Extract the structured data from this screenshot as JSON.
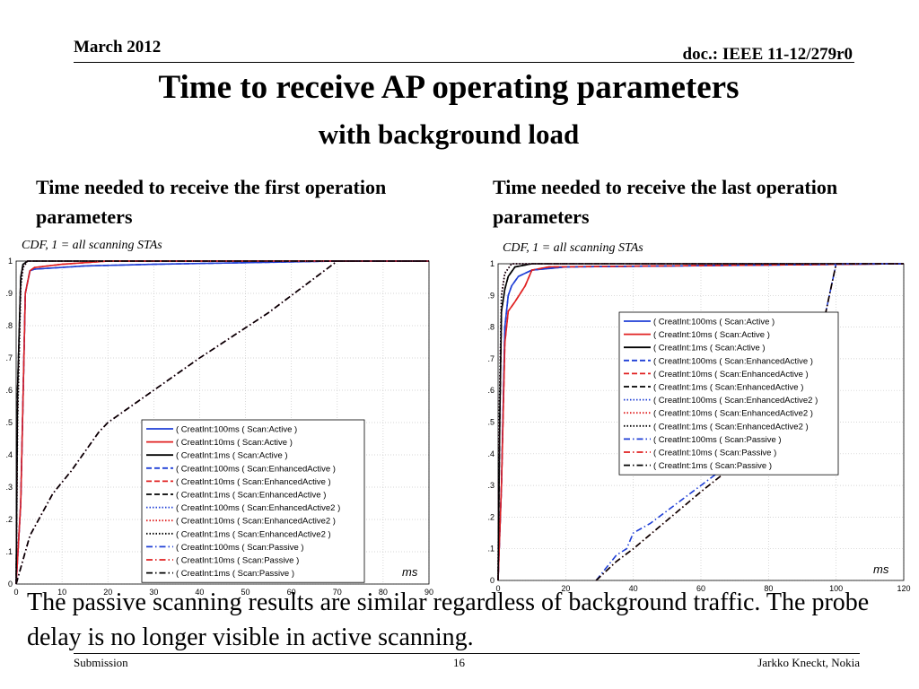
{
  "header": {
    "date": "March 2012",
    "doc": "doc.: IEEE 11-12/279r0"
  },
  "title": "Time to receive AP operating parameters",
  "subtitle": "with background load",
  "captions": {
    "left": "Time needed to receive the first operation parameters",
    "right": "Time needed to receive the last operation parameters"
  },
  "chart_note": "CDF, 1 = all scanning STAs",
  "unit_label": "ms",
  "body_text": "The passive scanning results are similar regardless of background traffic. The probe delay is no longer visible in active scanning.",
  "footer": {
    "left": "Submission",
    "page": "16",
    "right": "Jarkko Kneckt, Nokia"
  },
  "colors": {
    "blue": "#1f3fd6",
    "red": "#e02020",
    "black": "#000000"
  },
  "chart_data": [
    {
      "type": "line",
      "xlim": [
        0,
        90
      ],
      "ylim": [
        0,
        1
      ],
      "xticks": [
        0,
        10,
        20,
        30,
        40,
        50,
        60,
        70,
        80,
        90
      ],
      "yticks": [
        0,
        0.1,
        0.2,
        0.3,
        0.4,
        0.5,
        0.6,
        0.7,
        0.8,
        0.9,
        1
      ],
      "grid": true,
      "legend_position": "bottom-right",
      "series": [
        {
          "name": "( CreatInt:100ms ( Scan:Active )",
          "color": "blue",
          "dash": "solid",
          "x": [
            0,
            1,
            2,
            3,
            4,
            15,
            30,
            50,
            70,
            90
          ],
          "y": [
            0,
            0.25,
            0.9,
            0.97,
            0.975,
            0.985,
            0.99,
            0.995,
            1,
            1
          ]
        },
        {
          "name": "( CreatInt:10ms ( Scan:Active )",
          "color": "red",
          "dash": "solid",
          "x": [
            0,
            1,
            2,
            3,
            4,
            10,
            20,
            90
          ],
          "y": [
            0,
            0.25,
            0.9,
            0.97,
            0.98,
            0.99,
            1,
            1
          ]
        },
        {
          "name": "( CreatInt:1ms ( Scan:Active )",
          "color": "black",
          "dash": "solid",
          "x": [
            0,
            0.3,
            1,
            1.5,
            2.5,
            5,
            90
          ],
          "y": [
            0,
            0.6,
            0.95,
            0.99,
            1,
            1,
            1
          ]
        },
        {
          "name": "( CreatInt:100ms ( Scan:EnhancedActive )",
          "color": "blue",
          "dash": "dash",
          "x": [
            0,
            1,
            2,
            3,
            4,
            15,
            30,
            50,
            70,
            90
          ],
          "y": [
            0,
            0.25,
            0.9,
            0.97,
            0.975,
            0.985,
            0.99,
            0.995,
            1,
            1
          ]
        },
        {
          "name": "( CreatInt:10ms ( Scan:EnhancedActive )",
          "color": "red",
          "dash": "dash",
          "x": [
            0,
            1,
            2,
            3,
            4,
            10,
            20,
            90
          ],
          "y": [
            0,
            0.25,
            0.9,
            0.97,
            0.98,
            0.99,
            1,
            1
          ]
        },
        {
          "name": "( CreatInt:1ms ( Scan:EnhancedActive )",
          "color": "black",
          "dash": "dash",
          "x": [
            0,
            0.3,
            1,
            1.5,
            2.5,
            5,
            90
          ],
          "y": [
            0,
            0.6,
            0.95,
            0.99,
            1,
            1,
            1
          ]
        },
        {
          "name": "( CreatInt:100ms ( Scan:EnhancedActive2 )",
          "color": "blue",
          "dash": "dot",
          "x": [
            0,
            0.3,
            1,
            1.5,
            2.5,
            5,
            90
          ],
          "y": [
            0,
            0.5,
            0.92,
            0.98,
            1,
            1,
            1
          ]
        },
        {
          "name": "( CreatInt:10ms ( Scan:EnhancedActive2 )",
          "color": "red",
          "dash": "dot",
          "x": [
            0,
            0.3,
            1,
            1.5,
            2.5,
            5,
            90
          ],
          "y": [
            0,
            0.5,
            0.92,
            0.98,
            1,
            1,
            1
          ]
        },
        {
          "name": "( CreatInt:1ms ( Scan:EnhancedActive2 )",
          "color": "black",
          "dash": "dot",
          "x": [
            0,
            0.3,
            1,
            1.5,
            2.5,
            5,
            90
          ],
          "y": [
            0,
            0.5,
            0.92,
            0.98,
            1,
            1,
            1
          ]
        },
        {
          "name": "( CreatInt:100ms ( Scan:Passive )",
          "color": "blue",
          "dash": "dashdot",
          "x": [
            0,
            3,
            8,
            12,
            18,
            20,
            25,
            40,
            55,
            70,
            90
          ],
          "y": [
            0,
            0.15,
            0.28,
            0.35,
            0.47,
            0.5,
            0.55,
            0.7,
            0.84,
            1,
            1
          ]
        },
        {
          "name": "( CreatInt:10ms ( Scan:Passive )",
          "color": "red",
          "dash": "dashdot",
          "x": [
            0,
            3,
            8,
            12,
            18,
            20,
            25,
            40,
            55,
            70,
            90
          ],
          "y": [
            0,
            0.15,
            0.28,
            0.35,
            0.47,
            0.5,
            0.55,
            0.7,
            0.84,
            1,
            1
          ]
        },
        {
          "name": "( CreatInt:1ms ( Scan:Passive )",
          "color": "black",
          "dash": "dashdot",
          "x": [
            0,
            3,
            8,
            12,
            18,
            20,
            25,
            40,
            55,
            70,
            90
          ],
          "y": [
            0,
            0.15,
            0.28,
            0.35,
            0.47,
            0.5,
            0.55,
            0.7,
            0.84,
            1,
            1
          ]
        }
      ]
    },
    {
      "type": "line",
      "xlim": [
        0,
        120
      ],
      "ylim": [
        0,
        1
      ],
      "xticks": [
        0,
        20,
        40,
        60,
        80,
        100,
        120
      ],
      "yticks": [
        0,
        0.1,
        0.2,
        0.3,
        0.4,
        0.5,
        0.6,
        0.7,
        0.8,
        0.9,
        1
      ],
      "grid": true,
      "legend_position": "top-right",
      "series": [
        {
          "name": "( CreatInt:100ms ( Scan:Active )",
          "color": "blue",
          "dash": "solid",
          "x": [
            0,
            1,
            2,
            3,
            4,
            6,
            10,
            20,
            120
          ],
          "y": [
            0,
            0.3,
            0.8,
            0.9,
            0.93,
            0.96,
            0.98,
            0.99,
            1
          ]
        },
        {
          "name": "( CreatInt:10ms ( Scan:Active )",
          "color": "red",
          "dash": "solid",
          "x": [
            0,
            1,
            2,
            3,
            5,
            8,
            10,
            15,
            120
          ],
          "y": [
            0,
            0.3,
            0.75,
            0.85,
            0.88,
            0.93,
            0.98,
            0.99,
            1
          ]
        },
        {
          "name": "( CreatInt:1ms ( Scan:Active )",
          "color": "black",
          "dash": "solid",
          "x": [
            0,
            0.5,
            1,
            2,
            3,
            5,
            10,
            120
          ],
          "y": [
            0,
            0.5,
            0.85,
            0.92,
            0.96,
            0.99,
            1,
            1
          ]
        },
        {
          "name": "( CreatInt:100ms ( Scan:EnhancedActive )",
          "color": "blue",
          "dash": "dash",
          "x": [
            0,
            1,
            2,
            3,
            4,
            6,
            10,
            20,
            120
          ],
          "y": [
            0,
            0.3,
            0.8,
            0.9,
            0.93,
            0.96,
            0.98,
            0.99,
            1
          ]
        },
        {
          "name": "( CreatInt:10ms ( Scan:EnhancedActive )",
          "color": "red",
          "dash": "dash",
          "x": [
            0,
            1,
            2,
            3,
            5,
            8,
            10,
            15,
            120
          ],
          "y": [
            0,
            0.3,
            0.75,
            0.85,
            0.88,
            0.93,
            0.98,
            0.99,
            1
          ]
        },
        {
          "name": "( CreatInt:1ms ( Scan:EnhancedActive )",
          "color": "black",
          "dash": "dash",
          "x": [
            0,
            0.5,
            1,
            2,
            3,
            5,
            10,
            120
          ],
          "y": [
            0,
            0.5,
            0.85,
            0.92,
            0.96,
            0.99,
            1,
            1
          ]
        },
        {
          "name": "( CreatInt:100ms ( Scan:EnhancedActive2 )",
          "color": "blue",
          "dash": "dot",
          "x": [
            0,
            0.3,
            1,
            2,
            4,
            120
          ],
          "y": [
            0,
            0.5,
            0.9,
            0.97,
            1,
            1
          ]
        },
        {
          "name": "( CreatInt:10ms ( Scan:EnhancedActive2 )",
          "color": "red",
          "dash": "dot",
          "x": [
            0,
            0.3,
            1,
            2,
            4,
            120
          ],
          "y": [
            0,
            0.5,
            0.9,
            0.97,
            1,
            1
          ]
        },
        {
          "name": "( CreatInt:1ms ( Scan:EnhancedActive2 )",
          "color": "black",
          "dash": "dot",
          "x": [
            0,
            0.3,
            1,
            2,
            4,
            120
          ],
          "y": [
            0,
            0.5,
            0.9,
            0.97,
            1,
            1
          ]
        },
        {
          "name": "( CreatInt:100ms ( Scan:Passive )",
          "color": "blue",
          "dash": "dashdot",
          "x": [
            29,
            35,
            38,
            40,
            45,
            60,
            80,
            90,
            95,
            100,
            120
          ],
          "y": [
            0,
            0.08,
            0.1,
            0.15,
            0.18,
            0.3,
            0.46,
            0.55,
            0.75,
            1,
            1
          ]
        },
        {
          "name": "( CreatInt:10ms ( Scan:Passive )",
          "color": "red",
          "dash": "dashdot",
          "x": [
            29,
            35,
            40,
            50,
            60,
            80,
            90,
            95,
            100,
            120
          ],
          "y": [
            0,
            0.06,
            0.1,
            0.19,
            0.28,
            0.45,
            0.55,
            0.75,
            1,
            1
          ]
        },
        {
          "name": "( CreatInt:1ms ( Scan:Passive )",
          "color": "black",
          "dash": "dashdot",
          "x": [
            29,
            35,
            40,
            50,
            60,
            80,
            90,
            95,
            100,
            120
          ],
          "y": [
            0,
            0.06,
            0.1,
            0.19,
            0.28,
            0.45,
            0.55,
            0.75,
            1,
            1
          ]
        }
      ]
    }
  ]
}
